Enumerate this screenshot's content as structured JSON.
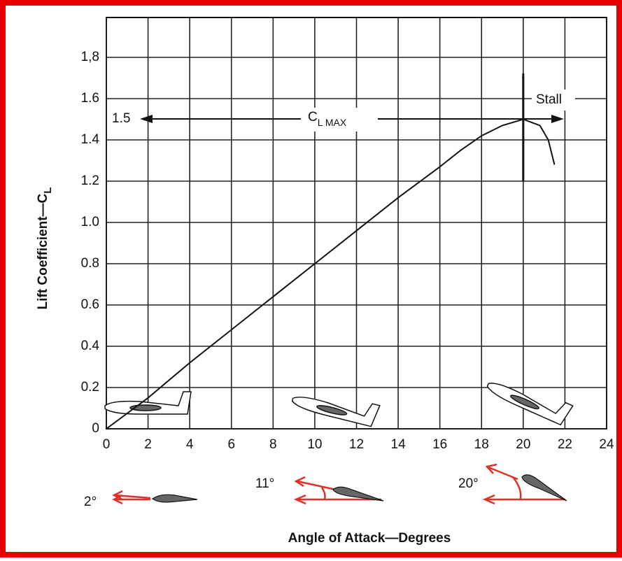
{
  "chart_data": {
    "type": "line",
    "x_label": "Angle of Attack—Degrees",
    "y_label": "Lift Coefficient—C",
    "y_label_subscript": "L",
    "x": [
      0,
      2,
      4,
      6,
      8,
      10,
      12,
      14,
      16,
      17,
      18,
      19,
      20,
      20.8,
      21.2,
      21.5
    ],
    "series": [
      {
        "color": "#111111",
        "values": [
          0,
          0.15,
          0.32,
          0.48,
          0.64,
          0.8,
          0.96,
          1.12,
          1.27,
          1.35,
          1.42,
          1.47,
          1.5,
          1.47,
          1.4,
          1.28
        ]
      }
    ],
    "xlim": [
      0,
      24
    ],
    "xticks": [
      0,
      2,
      4,
      6,
      8,
      10,
      12,
      14,
      16,
      18,
      20,
      22,
      24
    ],
    "ylim": [
      0,
      2
    ],
    "yticks": [
      0,
      0.2,
      0.4,
      0.6,
      0.8,
      {
        "value": 1.0,
        "label": "1.0"
      },
      1.2,
      1.4,
      1.6,
      {
        "value": 1.8,
        "label": "1,8"
      }
    ],
    "grid": true,
    "annotations": {
      "cl_max_value": "1.5",
      "cl_max": "C",
      "cl_max_subscript": "L MAX",
      "stall": "Stall"
    },
    "angle_labels": [
      "2°",
      "11°",
      "20°"
    ]
  }
}
